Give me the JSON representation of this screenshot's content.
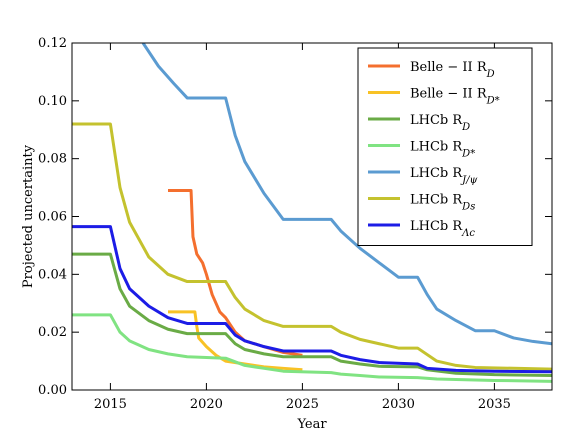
{
  "chart_data": {
    "type": "line",
    "xlabel": "Year",
    "ylabel": "Projected uncertainty",
    "xlim": [
      2013,
      2038
    ],
    "ylim": [
      0,
      0.12
    ],
    "xticks": [
      2015,
      2020,
      2025,
      2030,
      2035
    ],
    "yticks": [
      {
        "value": 0,
        "label": "0.00"
      },
      {
        "value": 0.02,
        "label": "0.02"
      },
      {
        "value": 0.04,
        "label": "0.04"
      },
      {
        "value": 0.06,
        "label": "0.06"
      },
      {
        "value": 0.08,
        "label": "0.08"
      },
      {
        "value": 0.1,
        "label": "0.10"
      },
      {
        "value": 0.12,
        "label": "0.12"
      }
    ],
    "legend": "upper right",
    "series": [
      {
        "name": "Belle − II R_D",
        "color": "#f46f2e",
        "x": [
          2018,
          2019.2,
          2019.3,
          2019.5,
          2019.8,
          2020,
          2020.3,
          2020.7,
          2021,
          2021.5,
          2022,
          2023,
          2024,
          2025
        ],
        "values": [
          0.069,
          0.069,
          0.053,
          0.047,
          0.044,
          0.04,
          0.033,
          0.027,
          0.025,
          0.02,
          0.017,
          0.015,
          0.013,
          0.012
        ]
      },
      {
        "name": "Belle − II R_D*",
        "color": "#f8c225",
        "x": [
          2018,
          2019.4,
          2019.5,
          2019.6,
          2020,
          2020.5,
          2021,
          2022,
          2023,
          2024,
          2025
        ],
        "values": [
          0.027,
          0.027,
          0.022,
          0.018,
          0.015,
          0.012,
          0.01,
          0.009,
          0.008,
          0.0075,
          0.007
        ]
      },
      {
        "name": "LHCb R_D",
        "color": "#6aab46",
        "x": [
          2013,
          2015,
          2015.5,
          2016,
          2017,
          2018,
          2019,
          2021,
          2021.5,
          2022,
          2023,
          2024,
          2026.5,
          2027,
          2028,
          2029,
          2031,
          2031.5,
          2033,
          2035,
          2038
        ],
        "values": [
          0.047,
          0.047,
          0.035,
          0.029,
          0.024,
          0.021,
          0.0195,
          0.0195,
          0.016,
          0.014,
          0.0125,
          0.0115,
          0.0115,
          0.01,
          0.009,
          0.0082,
          0.008,
          0.007,
          0.0058,
          0.0053,
          0.005
        ]
      },
      {
        "name": "LHCb R_D*",
        "color": "#80e382",
        "x": [
          2013,
          2015,
          2015.5,
          2016,
          2017,
          2018,
          2019,
          2021,
          2022,
          2023,
          2024,
          2026.5,
          2027,
          2028,
          2029,
          2031,
          2032,
          2035,
          2038
        ],
        "values": [
          0.026,
          0.026,
          0.02,
          0.017,
          0.014,
          0.0125,
          0.0115,
          0.011,
          0.0085,
          0.0075,
          0.0065,
          0.006,
          0.0055,
          0.005,
          0.0045,
          0.0043,
          0.0038,
          0.0033,
          0.003
        ]
      },
      {
        "name": "LHCb R_J/ψ",
        "color": "#5b9bd1",
        "x": [
          2016.7,
          2017.5,
          2018.3,
          2019,
          2021,
          2021.5,
          2022,
          2023,
          2024,
          2026.5,
          2027,
          2028,
          2029,
          2030,
          2031,
          2031.5,
          2032,
          2033,
          2034,
          2035,
          2036,
          2037,
          2038
        ],
        "values": [
          0.12,
          0.112,
          0.106,
          0.101,
          0.101,
          0.088,
          0.079,
          0.068,
          0.059,
          0.059,
          0.055,
          0.049,
          0.044,
          0.039,
          0.039,
          0.033,
          0.028,
          0.024,
          0.0205,
          0.0205,
          0.018,
          0.0168,
          0.016
        ]
      },
      {
        "name": "LHCb R_Ds",
        "color": "#c4c22e",
        "x": [
          2013,
          2015,
          2015.5,
          2016,
          2017,
          2018,
          2019,
          2021,
          2021.5,
          2022,
          2023,
          2024,
          2026.5,
          2027,
          2028,
          2029,
          2030,
          2031,
          2032,
          2033,
          2034,
          2038
        ],
        "values": [
          0.092,
          0.092,
          0.07,
          0.058,
          0.046,
          0.04,
          0.0375,
          0.0375,
          0.032,
          0.028,
          0.024,
          0.022,
          0.022,
          0.02,
          0.0175,
          0.016,
          0.0145,
          0.0145,
          0.01,
          0.0085,
          0.0078,
          0.0072
        ]
      },
      {
        "name": "LHCb R_Λc",
        "color": "#1c1ce6",
        "x": [
          2013,
          2015,
          2015.5,
          2016,
          2017,
          2018,
          2019,
          2021,
          2021.5,
          2022,
          2023,
          2024,
          2026.5,
          2027,
          2028,
          2029,
          2031,
          2031.5,
          2033,
          2035,
          2038
        ],
        "values": [
          0.0565,
          0.0565,
          0.042,
          0.035,
          0.029,
          0.025,
          0.023,
          0.023,
          0.019,
          0.017,
          0.015,
          0.0135,
          0.0135,
          0.012,
          0.0105,
          0.0095,
          0.009,
          0.0075,
          0.0068,
          0.0065,
          0.0063
        ]
      }
    ]
  }
}
